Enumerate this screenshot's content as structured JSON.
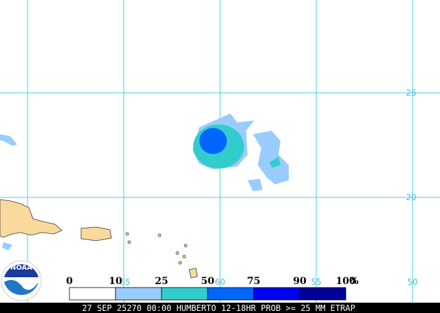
{
  "map": {
    "latitude_labels": [
      "25",
      "20"
    ],
    "longitude_labels": [
      "65",
      "60",
      "55",
      "50"
    ],
    "legend": {
      "ticks": [
        "0",
        "10",
        "25",
        "50",
        "75",
        "90",
        "100"
      ],
      "unit": "%",
      "colors": [
        "#ffffff",
        "#99ccff",
        "#33cccc",
        "#0066ff",
        "#0000ee",
        "#000099"
      ]
    },
    "logo": "NOAA",
    "caption": "27 SEP 25270 00:00 HUMBERTO 12-18HR PROB >= 25 MM ETRAP"
  }
}
